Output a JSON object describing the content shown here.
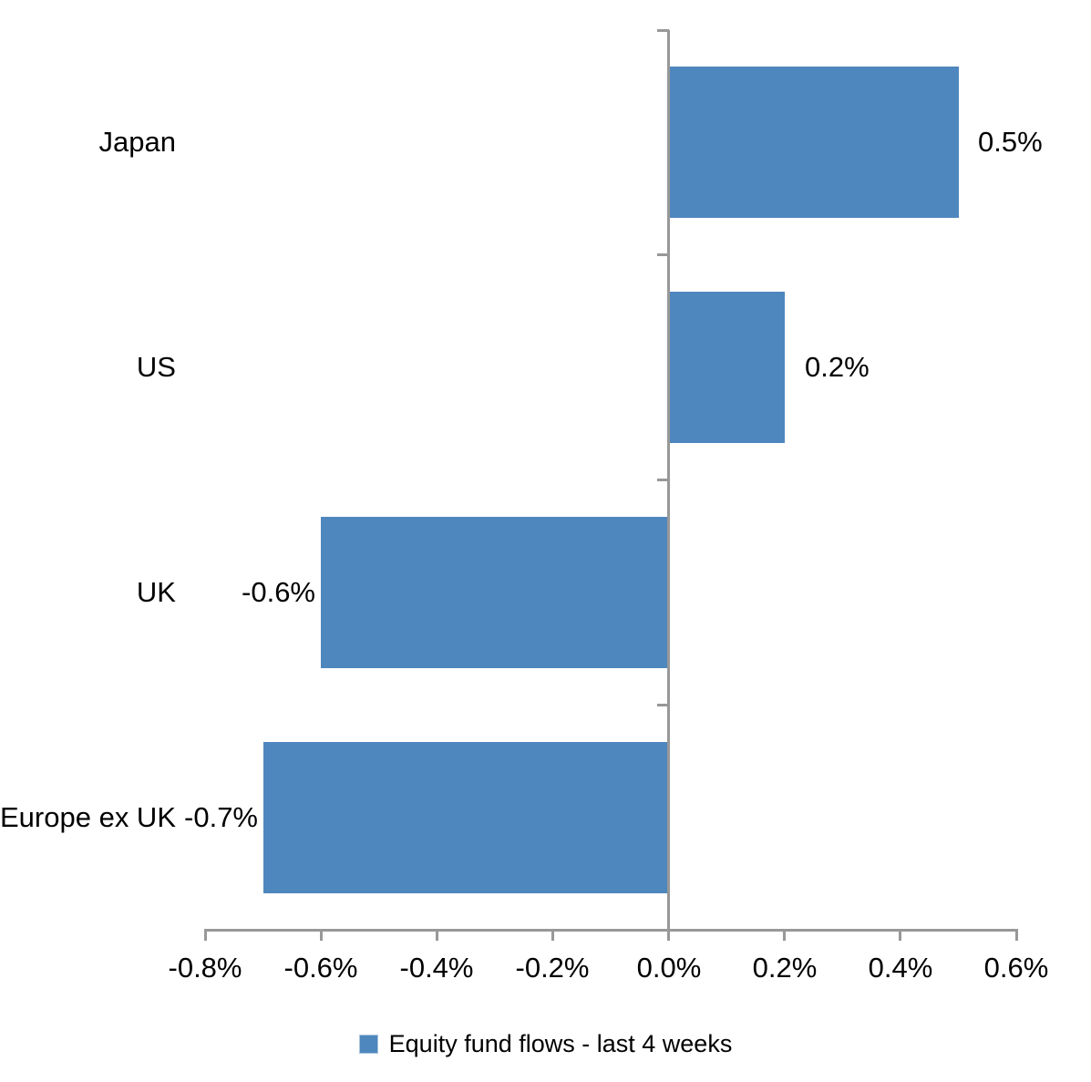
{
  "chart_data": {
    "type": "bar",
    "orientation": "horizontal",
    "title": "",
    "xlabel": "",
    "ylabel": "",
    "categories": [
      "Japan",
      "US",
      "UK",
      "Europe ex UK"
    ],
    "series": [
      {
        "name": "Equity fund flows - last 4 weeks",
        "values": [
          0.5,
          0.2,
          -0.6,
          -0.7
        ]
      }
    ],
    "data_labels": [
      "0.5%",
      "0.2%",
      "-0.6%",
      "-0.7%"
    ],
    "xlim": [
      -0.8,
      0.6
    ],
    "x_ticks": {
      "values": [
        -0.8,
        -0.6,
        -0.4,
        -0.2,
        0.0,
        0.2,
        0.4,
        0.6
      ],
      "labels": [
        "-0.8%",
        "-0.6%",
        "-0.4%",
        "-0.2%",
        "0.0%",
        "0.2%",
        "0.4%",
        "0.6%"
      ]
    },
    "grid": false,
    "legend": {
      "position": "bottom",
      "label": "Equity fund flows - last 4 weeks"
    },
    "colors": {
      "bar": "#4E87BD",
      "axis": "#989898",
      "text": "#000000",
      "background": "#FFFFFF"
    }
  }
}
